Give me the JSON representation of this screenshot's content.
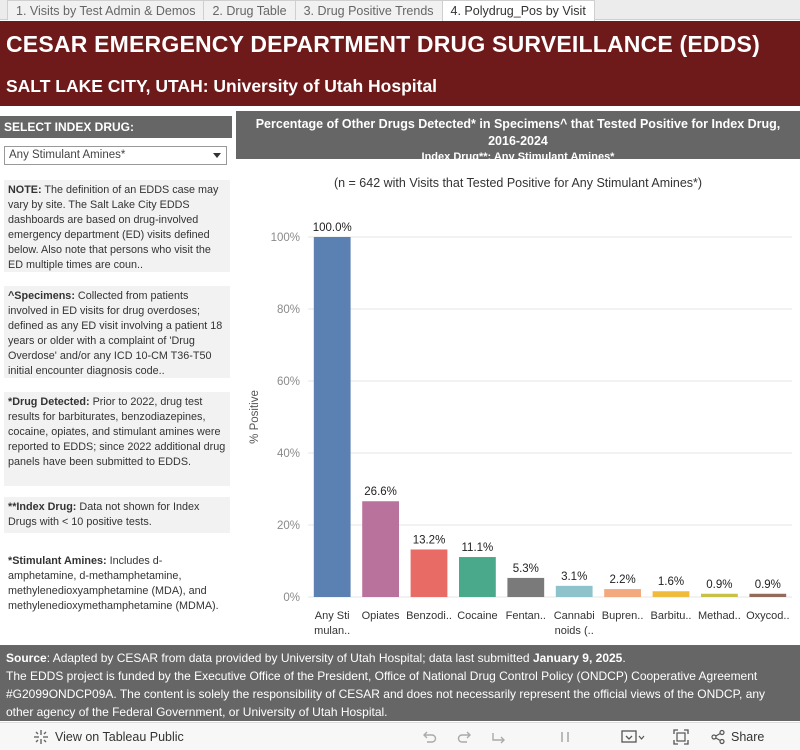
{
  "tabs": [
    {
      "label": "1. Visits by Test Admin & Demos"
    },
    {
      "label": "2. Drug Table"
    },
    {
      "label": "3. Drug Positive Trends"
    },
    {
      "label": "4. Polydrug_Pos by Visit"
    }
  ],
  "header": {
    "title": "CESAR EMERGENCY DEPARTMENT DRUG SURVEILLANCE (EDDS)",
    "subtitle": "SALT LAKE CITY, UTAH:  University of Utah Hospital"
  },
  "left": {
    "select_label": "SELECT INDEX DRUG:",
    "dropdown_value": "Any Stimulant Amines*",
    "notes": [
      {
        "bold": "NOTE:",
        "text": " The definition of an EDDS case may vary by site. The Salt Lake City EDDS dashboards are based on drug-involved emergency department (ED) visits defined below. Also note that persons who visit the ED multiple times are coun.."
      },
      {
        "bold": "^Specimens:",
        "text": " Collected from patients involved in ED visits for drug overdoses; defined as any ED visit involving a patient 18 years or older with a complaint of 'Drug Overdose' and/or any ICD 10-CM T36-T50 initial encounter diagnosis code.."
      },
      {
        "bold": "*Drug Detected:",
        "text": " Prior to 2022, drug test results for barbiturates, benzodiazepines, cocaine, opiates, and stimulant amines were reported to EDDS; since 2022 additional drug panels have been submitted to EDDS."
      },
      {
        "bold": "**Index Drug:",
        "text": " Data not shown for Index Drugs with < 10 positive tests."
      },
      {
        "bold": "*Stimulant Amines:",
        "text": " Includes d-amphetamine, d-methamphetamine, methylenedioxyamphetamine (MDA), and methylenedioxymethamphetamine (MDMA)."
      }
    ]
  },
  "chart": {
    "title_line1": "Percentage of Other Drugs Detected* in Specimens^ that Tested Positive for Index Drug,",
    "title_line2": "2016-2024",
    "title_line3": "Index Drug**: Any Stimulant Amines*",
    "subtitle": "(n = 642 with Visits that Tested Positive for Any Stimulant Amines*)"
  },
  "chart_data": {
    "type": "bar",
    "categories": [
      [
        "Any Sti",
        "mulan.."
      ],
      [
        "Opiates"
      ],
      [
        "Benzodi.."
      ],
      [
        "Cocaine"
      ],
      [
        "Fentan.."
      ],
      [
        "Cannabi",
        "noids (.."
      ],
      [
        "Bupren.."
      ],
      [
        "Barbitu.."
      ],
      [
        "Methad.."
      ],
      [
        "Oxycod.."
      ]
    ],
    "values": [
      100.0,
      26.6,
      13.2,
      11.1,
      5.3,
      3.1,
      2.2,
      1.6,
      0.9,
      0.9
    ],
    "value_labels": [
      "100.0%",
      "26.6%",
      "13.2%",
      "11.1%",
      "5.3%",
      "3.1%",
      "2.2%",
      "1.6%",
      "0.9%",
      "0.9%"
    ],
    "colors": [
      "#5b80b2",
      "#b9729b",
      "#e96b66",
      "#4aa98a",
      "#7a7a7a",
      "#8ec3cb",
      "#f2a97e",
      "#f0bb3c",
      "#c6c248",
      "#936b5b"
    ],
    "ylabel": "% Positive",
    "ylim": [
      0,
      100
    ],
    "yticks": [
      0,
      20,
      40,
      60,
      80,
      100
    ],
    "ytick_labels": [
      "0%",
      "20%",
      "40%",
      "60%",
      "80%",
      "100%"
    ],
    "grid": true
  },
  "footer": {
    "source_label": "Source",
    "source_text": ": Adapted by CESAR from data provided by University of Utah Hospital; data last submitted ",
    "source_date": "January 9, 2025",
    "source_end": ".",
    "funding_line1": "The EDDS project is funded by the Executive Office of the President, Office of National Drug Control Policy (ONDCP) Cooperative Agreement",
    "funding_line2": "#G2099ONDCP09A. The content is solely the responsibility of CESAR and does not necessarily represent the official views of the ONDCP, any",
    "funding_line3": "other agency of the Federal Government, or University of Utah Hospital."
  },
  "toolbar": {
    "view_label": "View on Tableau Public",
    "share_label": "Share",
    "icons": [
      "undo-icon",
      "redo-icon",
      "revert-icon",
      "pause-icon",
      "download-icon",
      "fullscreen-icon",
      "share-icon"
    ]
  }
}
